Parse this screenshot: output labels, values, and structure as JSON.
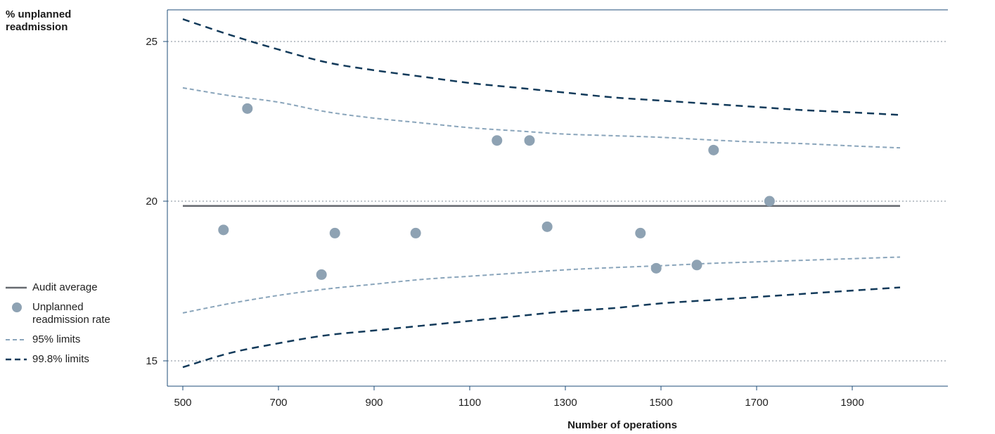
{
  "chart_data": {
    "type": "scatter",
    "title": "",
    "ylabel": [
      "% unplanned",
      "readmission"
    ],
    "xlabel": "Number of operations",
    "xlim": [
      450,
      1950
    ],
    "ylim": [
      14.6,
      26
    ],
    "x_ticks": [
      500,
      700,
      900,
      1100,
      1300,
      1500,
      1700,
      1900
    ],
    "y_ticks": [
      15,
      20,
      25
    ],
    "grid": "horizontal dotted at 15, 20, 25",
    "legend_position": "left",
    "audit_average": 19.85,
    "series": [
      {
        "name": "Unplanned readmission rate",
        "kind": "points",
        "points": [
          {
            "x": 585,
            "y": 19.1
          },
          {
            "x": 635,
            "y": 22.9
          },
          {
            "x": 790,
            "y": 17.7
          },
          {
            "x": 818,
            "y": 19.0
          },
          {
            "x": 987,
            "y": 19.0
          },
          {
            "x": 1157,
            "y": 21.9
          },
          {
            "x": 1225,
            "y": 21.9
          },
          {
            "x": 1262,
            "y": 19.2
          },
          {
            "x": 1457,
            "y": 19.0
          },
          {
            "x": 1490,
            "y": 17.9
          },
          {
            "x": 1575,
            "y": 18.0
          },
          {
            "x": 1610,
            "y": 21.6
          },
          {
            "x": 1727,
            "y": 20.0
          }
        ]
      },
      {
        "name": "95% limits",
        "kind": "band",
        "x": [
          500,
          600,
          700,
          800,
          900,
          1000,
          1100,
          1200,
          1300,
          1400,
          1500,
          1600,
          1700,
          1800,
          1900,
          2000
        ],
        "upper": [
          23.55,
          23.3,
          23.1,
          22.8,
          22.6,
          22.45,
          22.3,
          22.2,
          22.1,
          22.05,
          22.0,
          21.92,
          21.85,
          21.8,
          21.73,
          21.67
        ],
        "lower": [
          16.5,
          16.8,
          17.05,
          17.25,
          17.4,
          17.55,
          17.65,
          17.75,
          17.85,
          17.92,
          17.98,
          18.05,
          18.1,
          18.15,
          18.2,
          18.25
        ]
      },
      {
        "name": "99.8% limits",
        "kind": "band",
        "x": [
          500,
          600,
          700,
          800,
          900,
          1000,
          1100,
          1200,
          1300,
          1400,
          1500,
          1600,
          1700,
          1800,
          1900,
          2000
        ],
        "upper": [
          25.7,
          25.2,
          24.75,
          24.35,
          24.1,
          23.9,
          23.7,
          23.55,
          23.4,
          23.25,
          23.15,
          23.05,
          22.95,
          22.85,
          22.78,
          22.7
        ],
        "lower": [
          14.8,
          15.25,
          15.55,
          15.8,
          15.95,
          16.1,
          16.25,
          16.4,
          16.55,
          16.65,
          16.8,
          16.9,
          17.0,
          17.1,
          17.2,
          17.3
        ]
      }
    ],
    "legend": [
      {
        "label": "Audit average",
        "style": "solid"
      },
      {
        "label": [
          "Unplanned",
          "readmission rate"
        ],
        "style": "dot"
      },
      {
        "label": "95% limits",
        "style": "dashed-light"
      },
      {
        "label": "99.8% limits",
        "style": "dashed-dark"
      }
    ],
    "colors": {
      "average": "#666a70",
      "points": "#8ea2b3",
      "limit95": "#8aa5bb",
      "limit998": "#123a5a",
      "axis": "#1f4e79",
      "grid": "#7d8a96"
    }
  }
}
